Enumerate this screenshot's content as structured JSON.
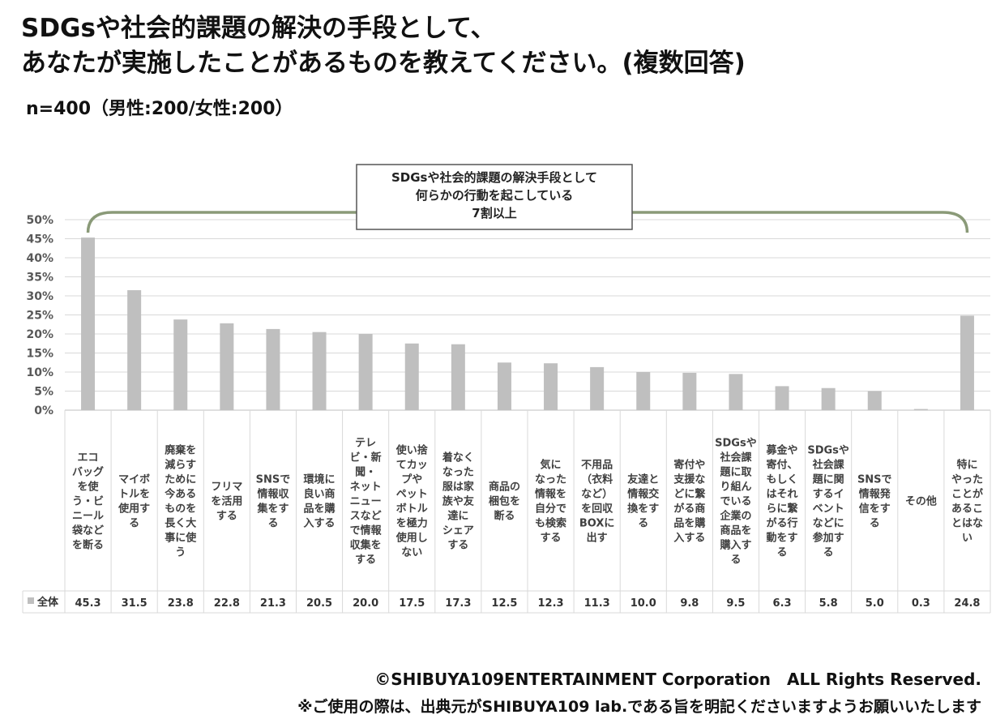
{
  "title": {
    "line1": "SDGsや社会的課題の解決の手段として、",
    "line2": "あなたが実施したことがあるものを教えてください。(複数回答)"
  },
  "subtitle": "n=400（男性:200/女性:200）",
  "callout": {
    "lines": [
      "SDGsや社会的課題の解決手段として",
      "何らかの行動を起こしている",
      "7割以上"
    ]
  },
  "footer": {
    "copyright": "©SHIBUYA109ENTERTAINMENT Corporation　ALL Rights Reserved.",
    "note": "※ご使用の際は、出典元がSHIBUYA109 lab.である旨を明記くださいますようお願いいたします"
  },
  "colors": {
    "bar": "#bfbfbf",
    "grid": "#d9d9d9",
    "bracket": "#8a9a78",
    "callout_border": "#555555"
  },
  "chart_data": {
    "type": "bar",
    "categories": [
      [
        "エコ",
        "バッグ",
        "を使",
        "う・ビ",
        "ニール",
        "袋など",
        "を断る"
      ],
      [
        "マイボ",
        "トルを",
        "使用す",
        "る"
      ],
      [
        "廃棄を",
        "減らす",
        "ために",
        "今ある",
        "ものを",
        "長く大",
        "事に使",
        "う"
      ],
      [
        "フリマ",
        "を活用",
        "する"
      ],
      [
        "SNSで",
        "情報収",
        "集をす",
        "る"
      ],
      [
        "環境に",
        "良い商",
        "品を購",
        "入する"
      ],
      [
        "テレ",
        "ビ・新",
        "聞・",
        "ネット",
        "ニュー",
        "スなど",
        "で情報",
        "収集を",
        "する"
      ],
      [
        "使い捨",
        "てカッ",
        "プや",
        "ペット",
        "ボトル",
        "を極力",
        "使用し",
        "ない"
      ],
      [
        "着なく",
        "なった",
        "服は家",
        "族や友",
        "達に",
        "シェア",
        "する"
      ],
      [
        "商品の",
        "梱包を",
        "断る"
      ],
      [
        "気に",
        "なった",
        "情報を",
        "自分で",
        "も検索",
        "する"
      ],
      [
        "不用品",
        "（衣料",
        "など）",
        "を回収",
        "BOXに",
        "出す"
      ],
      [
        "友達と",
        "情報交",
        "換をす",
        "る"
      ],
      [
        "寄付や",
        "支援な",
        "どに繋",
        "がる商",
        "品を購",
        "入する"
      ],
      [
        "SDGsや",
        "社会課",
        "題に取",
        "り組ん",
        "でいる",
        "企業の",
        "商品を",
        "購入す",
        "る"
      ],
      [
        "募金や",
        "寄付、",
        "もしく",
        "はそれ",
        "らに繋",
        "がる行",
        "動をす",
        "る"
      ],
      [
        "SDGsや",
        "社会課",
        "題に関",
        "するイ",
        "ベント",
        "などに",
        "参加す",
        "る"
      ],
      [
        "SNSで",
        "情報発",
        "信をす",
        "る"
      ],
      [
        "その他"
      ],
      [
        "特に",
        "やった",
        "ことが",
        "あるこ",
        "とはな",
        "い"
      ]
    ],
    "series": [
      {
        "name": "全体",
        "values": [
          45.3,
          31.5,
          23.8,
          22.8,
          21.3,
          20.5,
          20.0,
          17.5,
          17.3,
          12.5,
          12.3,
          11.3,
          10.0,
          9.8,
          9.5,
          6.3,
          5.8,
          5.0,
          0.3,
          24.8
        ],
        "labels": [
          "45.3",
          "31.5",
          "23.8",
          "22.8",
          "21.3",
          "20.5",
          "20.0",
          "17.5",
          "17.3",
          "12.5",
          "12.3",
          "11.3",
          "10.0",
          "9.8",
          "9.5",
          "6.3",
          "5.8",
          "5.0",
          "0.3",
          "24.8"
        ]
      }
    ],
    "ylim": [
      0,
      50
    ],
    "yticks": [
      "0%",
      "5%",
      "10%",
      "15%",
      "20%",
      "25%",
      "30%",
      "35%",
      "40%",
      "45%",
      "50%"
    ],
    "grid": true,
    "data_table": true
  }
}
